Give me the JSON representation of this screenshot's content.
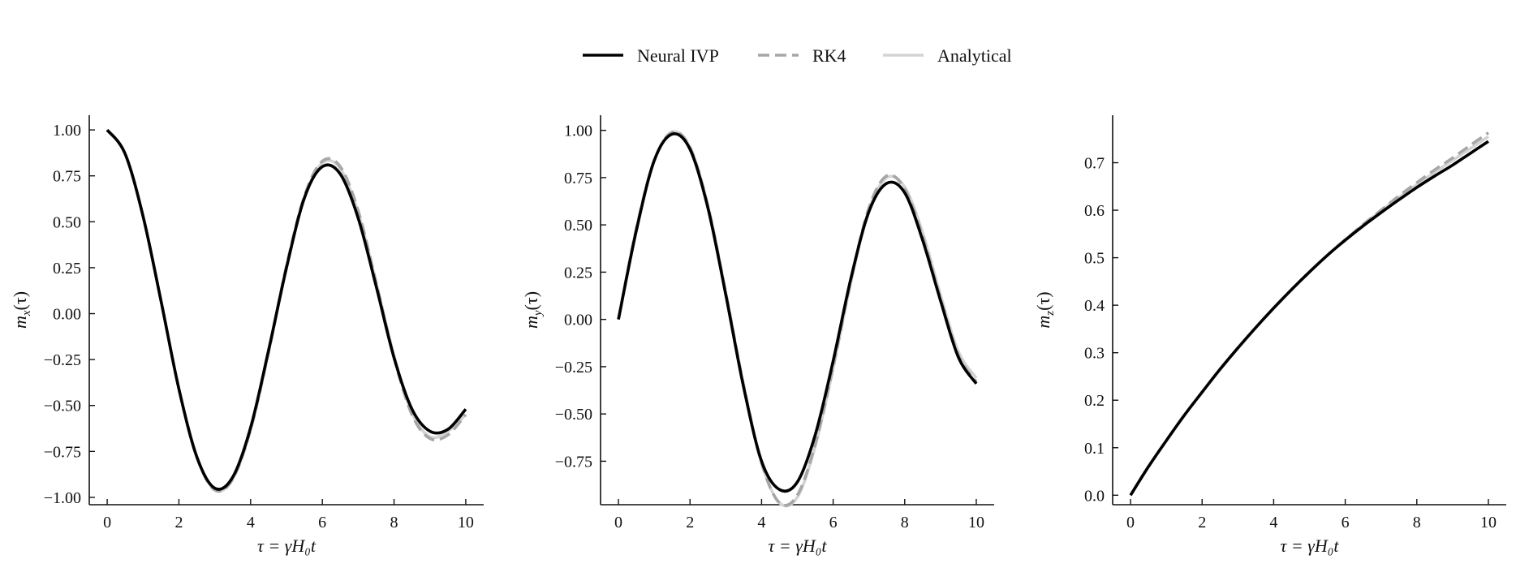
{
  "legend": {
    "entries": [
      {
        "label": "Neural IVP",
        "color": "#000000",
        "dash": "solid"
      },
      {
        "label": "RK4",
        "color": "#a6a6a6",
        "dash": "dashed"
      },
      {
        "label": "Analytical",
        "color": "#d3d3d3",
        "dash": "solid"
      }
    ]
  },
  "chart_data": [
    {
      "type": "line",
      "ylabel_base": "m",
      "ylabel_sub": "x",
      "ylabel_arg": "(τ)",
      "xlabel": "τ = γH₀t",
      "xlim": [
        -0.5,
        10.5
      ],
      "ylim": [
        -1.04,
        1.08
      ],
      "xticks": [
        0,
        2,
        4,
        6,
        8,
        10
      ],
      "yticks": [
        1.0,
        0.75,
        0.5,
        0.25,
        0.0,
        -0.25,
        -0.5,
        -0.75,
        -1.0
      ],
      "ytick_labels": [
        "1.00",
        "0.75",
        "0.50",
        "0.25",
        "0.00",
        "−0.25",
        "−0.50",
        "−0.75",
        "−1.00"
      ],
      "grid": false,
      "series": [
        {
          "name": "Analytical",
          "x": [
            0,
            0.5,
            1,
            1.5,
            2,
            2.5,
            3,
            3.5,
            4,
            4.5,
            5,
            5.5,
            6,
            6.5,
            7,
            7.5,
            8,
            8.5,
            9,
            9.5,
            10
          ],
          "y": [
            1.0,
            0.87,
            0.53,
            0.07,
            -0.41,
            -0.78,
            -0.96,
            -0.9,
            -0.63,
            -0.21,
            0.25,
            0.63,
            0.82,
            0.79,
            0.55,
            0.17,
            -0.23,
            -0.54,
            -0.67,
            -0.64,
            -0.55
          ]
        },
        {
          "name": "RK4",
          "x": [
            0,
            0.5,
            1,
            1.5,
            2,
            2.5,
            3,
            3.5,
            4,
            4.5,
            5,
            5.5,
            6,
            6.5,
            7,
            7.5,
            8,
            8.5,
            9,
            9.5,
            10
          ],
          "y": [
            1.0,
            0.87,
            0.53,
            0.07,
            -0.41,
            -0.78,
            -0.96,
            -0.9,
            -0.63,
            -0.21,
            0.26,
            0.64,
            0.83,
            0.8,
            0.56,
            0.17,
            -0.24,
            -0.55,
            -0.68,
            -0.66,
            -0.55
          ]
        },
        {
          "name": "Neural IVP",
          "x": [
            0,
            0.5,
            1,
            1.5,
            2,
            2.5,
            3,
            3.5,
            4,
            4.5,
            5,
            5.5,
            6,
            6.5,
            7,
            7.5,
            8,
            8.5,
            9,
            9.5,
            10
          ],
          "y": [
            1.0,
            0.87,
            0.53,
            0.07,
            -0.41,
            -0.78,
            -0.95,
            -0.89,
            -0.62,
            -0.2,
            0.25,
            0.63,
            0.8,
            0.76,
            0.52,
            0.15,
            -0.24,
            -0.52,
            -0.64,
            -0.63,
            -0.52
          ]
        }
      ]
    },
    {
      "type": "line",
      "ylabel_base": "m",
      "ylabel_sub": "y",
      "ylabel_arg": "(τ)",
      "xlabel": "τ = γH₀t",
      "xlim": [
        -0.5,
        10.5
      ],
      "ylim": [
        -0.98,
        1.08
      ],
      "xticks": [
        0,
        2,
        4,
        6,
        8,
        10
      ],
      "yticks": [
        1.0,
        0.75,
        0.5,
        0.25,
        0.0,
        -0.25,
        -0.5,
        -0.75
      ],
      "ytick_labels": [
        "1.00",
        "0.75",
        "0.50",
        "0.25",
        "0.00",
        "−0.25",
        "−0.50",
        "−0.75"
      ],
      "grid": false,
      "series": [
        {
          "name": "Analytical",
          "x": [
            0,
            0.5,
            1,
            1.5,
            2,
            2.5,
            3,
            3.5,
            4,
            4.5,
            5,
            5.5,
            6,
            6.5,
            7,
            7.5,
            8,
            8.5,
            9,
            9.5,
            10
          ],
          "y": [
            0.0,
            0.48,
            0.84,
            0.99,
            0.91,
            0.6,
            0.14,
            -0.35,
            -0.76,
            -0.97,
            -0.94,
            -0.67,
            -0.26,
            0.2,
            0.58,
            0.75,
            0.7,
            0.46,
            0.13,
            -0.17,
            -0.31
          ]
        },
        {
          "name": "RK4",
          "x": [
            0,
            0.5,
            1,
            1.5,
            2,
            2.5,
            3,
            3.5,
            4,
            4.5,
            5,
            5.5,
            6,
            6.5,
            7,
            7.5,
            8,
            8.5,
            9,
            9.5,
            10
          ],
          "y": [
            0.0,
            0.48,
            0.84,
            0.99,
            0.91,
            0.6,
            0.14,
            -0.35,
            -0.76,
            -0.97,
            -0.93,
            -0.66,
            -0.25,
            0.21,
            0.59,
            0.76,
            0.69,
            0.44,
            0.11,
            -0.19,
            -0.33
          ]
        },
        {
          "name": "Neural IVP",
          "x": [
            0,
            0.5,
            1,
            1.5,
            2,
            2.5,
            3,
            3.5,
            4,
            4.5,
            5,
            5.5,
            6,
            6.5,
            7,
            7.5,
            8,
            8.5,
            9,
            9.5,
            10
          ],
          "y": [
            0.0,
            0.47,
            0.84,
            0.98,
            0.9,
            0.59,
            0.13,
            -0.36,
            -0.75,
            -0.9,
            -0.86,
            -0.61,
            -0.22,
            0.22,
            0.57,
            0.72,
            0.67,
            0.42,
            0.1,
            -0.2,
            -0.34
          ]
        }
      ]
    },
    {
      "type": "line",
      "ylabel_base": "m",
      "ylabel_sub": "z",
      "ylabel_arg": "(τ)",
      "xlabel": "τ = γH₀t",
      "xlim": [
        -0.5,
        10.5
      ],
      "ylim": [
        -0.02,
        0.8
      ],
      "xticks": [
        0,
        2,
        4,
        6,
        8,
        10
      ],
      "yticks": [
        0.0,
        0.1,
        0.2,
        0.3,
        0.4,
        0.5,
        0.6,
        0.7
      ],
      "ytick_labels": [
        "0.0",
        "0.1",
        "0.2",
        "0.3",
        "0.4",
        "0.5",
        "0.6",
        "0.7"
      ],
      "grid": false,
      "series": [
        {
          "name": "Analytical",
          "x": [
            0,
            0.5,
            1,
            1.5,
            2,
            2.5,
            3,
            3.5,
            4,
            4.5,
            5,
            5.5,
            6,
            6.5,
            7,
            7.5,
            8,
            8.5,
            9,
            9.5,
            10
          ],
          "y": [
            0.0,
            0.06,
            0.115,
            0.168,
            0.217,
            0.265,
            0.31,
            0.353,
            0.394,
            0.433,
            0.47,
            0.505,
            0.538,
            0.569,
            0.599,
            0.627,
            0.654,
            0.68,
            0.705,
            0.73,
            0.755
          ]
        },
        {
          "name": "RK4",
          "x": [
            0,
            0.5,
            1,
            1.5,
            2,
            2.5,
            3,
            3.5,
            4,
            4.5,
            5,
            5.5,
            6,
            6.5,
            7,
            7.5,
            8,
            8.5,
            9,
            9.5,
            10
          ],
          "y": [
            0.0,
            0.06,
            0.115,
            0.168,
            0.217,
            0.265,
            0.31,
            0.353,
            0.394,
            0.433,
            0.47,
            0.505,
            0.538,
            0.57,
            0.6,
            0.63,
            0.658,
            0.685,
            0.71,
            0.737,
            0.763
          ]
        },
        {
          "name": "Neural IVP",
          "x": [
            0,
            0.5,
            1,
            1.5,
            2,
            2.5,
            3,
            3.5,
            4,
            4.5,
            5,
            5.5,
            6,
            6.5,
            7,
            7.5,
            8,
            8.5,
            9,
            9.5,
            10
          ],
          "y": [
            0.0,
            0.06,
            0.115,
            0.168,
            0.217,
            0.265,
            0.31,
            0.353,
            0.394,
            0.433,
            0.47,
            0.505,
            0.537,
            0.567,
            0.595,
            0.622,
            0.648,
            0.672,
            0.695,
            0.72,
            0.745
          ]
        }
      ]
    }
  ]
}
